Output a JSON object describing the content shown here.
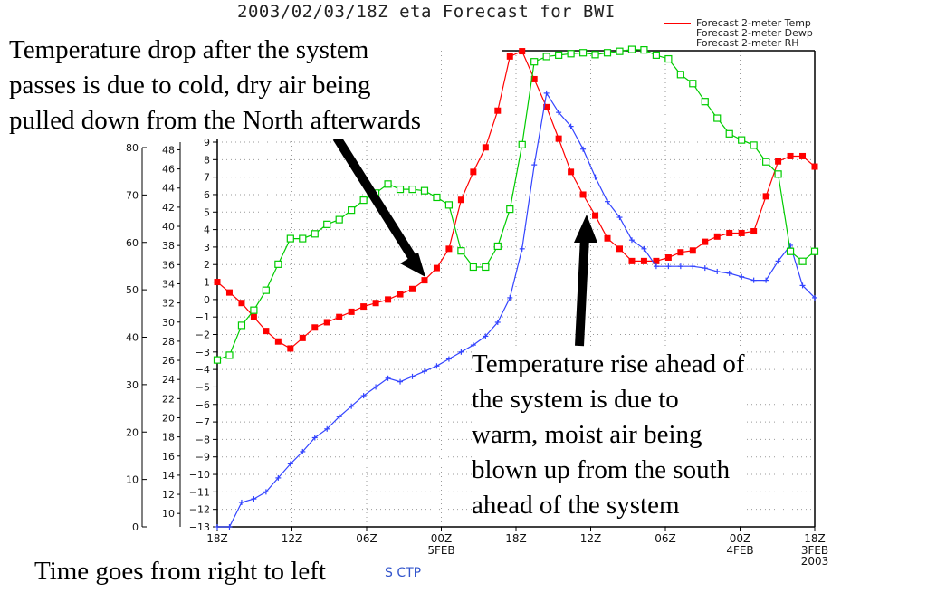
{
  "title": "2003/02/03/18Z eta Forecast for BWI",
  "legend": [
    {
      "label": "Forecast 2-meter Temp",
      "color": "#ff0000"
    },
    {
      "label": "Forecast 2-meter Dewp",
      "color": "#3344ff"
    },
    {
      "label": "Forecast 2-meter RH",
      "color": "#00cc00"
    }
  ],
  "annotations": {
    "top_left": [
      "Temperature drop after the system",
      "passes is due to cold, dry air being",
      "pulled down from the North afterwards"
    ],
    "right": [
      "Temperature rise ahead of",
      "the system is due to",
      "warm, moist air being",
      "blown up from the south",
      "ahead of the system"
    ],
    "footer": "Time goes from right to left",
    "source": "S CTP"
  },
  "chart_data": {
    "type": "line",
    "x_tick_labels": [
      {
        "text": "18Z",
        "sub": ""
      },
      {
        "text": "12Z",
        "sub": ""
      },
      {
        "text": "06Z",
        "sub": ""
      },
      {
        "text": "00Z",
        "sub": "5FEB"
      },
      {
        "text": "18Z",
        "sub": ""
      },
      {
        "text": "12Z",
        "sub": ""
      },
      {
        "text": "06Z",
        "sub": ""
      },
      {
        "text": "00Z",
        "sub": "4FEB"
      },
      {
        "text": "18Z",
        "sub": "3FEB|2003"
      }
    ],
    "axes": {
      "rh": {
        "ticks": [
          0,
          10,
          20,
          30,
          40,
          50,
          60,
          70,
          80
        ],
        "range": [
          0,
          80
        ]
      },
      "temp_f": {
        "ticks": [
          10,
          12,
          14,
          16,
          18,
          20,
          22,
          24,
          26,
          28,
          30,
          32,
          34,
          36,
          38,
          40,
          42,
          44,
          46,
          48
        ],
        "range": [
          8.6,
          48.8
        ]
      },
      "temp_c": {
        "ticks": [
          -13,
          -12,
          -11,
          -10,
          -9,
          -8,
          -7,
          -6,
          -5,
          -4,
          -3,
          -2,
          -1,
          0,
          1,
          2,
          3,
          4,
          5,
          6,
          7,
          8,
          9
        ],
        "range": [
          -13,
          9
        ]
      }
    },
    "series": [
      {
        "color": "#ff0000",
        "marker": "filled-square",
        "unit": "degC",
        "values": [
          1.0,
          0.4,
          -0.2,
          -1.0,
          -1.8,
          -2.4,
          -2.8,
          -2.2,
          -1.6,
          -1.3,
          -1.0,
          -0.7,
          -0.4,
          -0.2,
          0.0,
          0.3,
          0.6,
          1.1,
          1.8,
          2.9,
          5.7,
          7.3,
          8.7,
          10.8,
          13.9,
          14.2,
          12.6,
          11.0,
          9.2,
          7.3,
          6.0,
          4.8,
          3.5,
          2.9,
          2.2,
          2.2,
          2.2,
          2.4,
          2.7,
          2.8,
          3.3,
          3.6,
          3.8,
          3.8,
          3.9,
          5.9,
          7.9,
          8.2,
          8.2,
          7.6
        ]
      },
      {
        "color": "#3344ff",
        "marker": "plus",
        "unit": "degC",
        "values": [
          -13.0,
          -13.0,
          -11.6,
          -11.4,
          -11.0,
          -10.2,
          -9.4,
          -8.7,
          -7.9,
          -7.4,
          -6.7,
          -6.1,
          -5.5,
          -5.0,
          -4.5,
          -4.7,
          -4.4,
          -4.1,
          -3.8,
          -3.4,
          -3.0,
          -2.6,
          -2.1,
          -1.3,
          0.1,
          2.9,
          7.7,
          11.8,
          10.7,
          9.9,
          8.6,
          7.0,
          5.6,
          4.7,
          3.4,
          2.9,
          1.9,
          1.9,
          1.9,
          1.9,
          1.8,
          1.6,
          1.5,
          1.3,
          1.1,
          1.1,
          2.2,
          3.1,
          0.8,
          0.1
        ]
      },
      {
        "color": "#00cc00",
        "marker": "open-square",
        "unit": "percent",
        "values": [
          35.2,
          36.2,
          42.5,
          45.7,
          49.9,
          55.4,
          60.8,
          60.8,
          61.8,
          63.8,
          64.8,
          66.8,
          68.9,
          70.4,
          72.3,
          71.2,
          71.2,
          70.9,
          69.5,
          67.9,
          58.2,
          54.8,
          54.8,
          59.2,
          67.0,
          80.6,
          98.1,
          99.2,
          99.5,
          99.8,
          100.0,
          99.6,
          100.0,
          100.3,
          100.7,
          100.6,
          99.5,
          98.7,
          95.4,
          93.5,
          89.7,
          86.2,
          82.9,
          81.6,
          80.5,
          77.0,
          74.4,
          58.1,
          56.0,
          58.1
        ]
      }
    ]
  }
}
